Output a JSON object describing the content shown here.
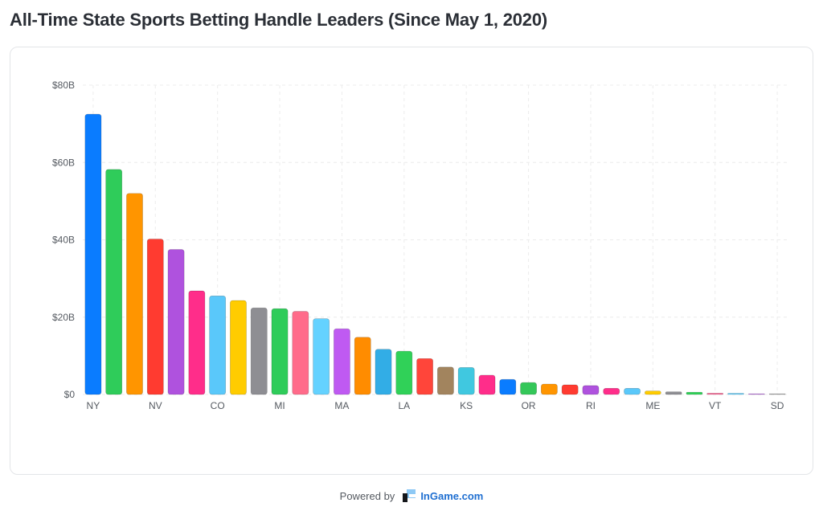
{
  "title": "All-Time State Sports Betting Handle Leaders (Since May 1, 2020)",
  "footer": {
    "powered_by": "Powered by",
    "brand": "InGame.com"
  },
  "colors": {
    "grid": "#ececec",
    "axis_text": "#555a61",
    "bar_stroke": "rgba(0,0,0,0.25)"
  },
  "chart_data": {
    "type": "bar",
    "title": "All-Time State Sports Betting Handle Leaders (Since May 1, 2020)",
    "xlabel": "",
    "ylabel": "",
    "ylim": [
      0,
      80
    ],
    "yticks": [
      0,
      20,
      40,
      60,
      80
    ],
    "ytick_labels": [
      "$0",
      "$20B",
      "$40B",
      "$60B",
      "$80B"
    ],
    "grid": true,
    "categories": [
      "NY",
      "",
      "",
      "NV",
      "",
      "",
      "CO",
      "",
      "",
      "MI",
      "",
      "",
      "MA",
      "",
      "",
      "LA",
      "",
      "",
      "KS",
      "",
      "",
      "OR",
      "",
      "",
      "RI",
      "",
      "",
      "ME",
      "",
      "",
      "VT",
      "",
      "",
      "SD"
    ],
    "values": [
      72.5,
      58.2,
      52.0,
      40.2,
      37.5,
      26.8,
      25.5,
      24.3,
      22.4,
      22.2,
      21.5,
      19.6,
      17.0,
      14.8,
      11.7,
      11.2,
      9.3,
      7.1,
      7.0,
      5.0,
      3.9,
      3.1,
      2.7,
      2.5,
      2.3,
      1.6,
      1.6,
      0.9,
      0.7,
      0.6,
      0.35,
      0.3,
      0.15,
      0.1
    ],
    "bar_colors": [
      "#0a7cff",
      "#2fcc5a",
      "#ff9500",
      "#ff3b30",
      "#af52de",
      "#ff2d8a",
      "#5ac8fa",
      "#ffcc00",
      "#8e8e93",
      "#2fcc5a",
      "#ff6b8a",
      "#64d2ff",
      "#bf5af2",
      "#ff8c00",
      "#32ade6",
      "#30d158",
      "#ff453a",
      "#a2845e",
      "#40c8e0",
      "#ff2d8a",
      "#0a7cff",
      "#34c759",
      "#ff9500",
      "#ff3b30",
      "#af52de",
      "#ff2d8a",
      "#5ac8fa",
      "#ffcc00",
      "#8e8e93",
      "#30d158",
      "#ff6b9a",
      "#64d2ff",
      "#bf5af2",
      "#a0a0a0"
    ]
  }
}
